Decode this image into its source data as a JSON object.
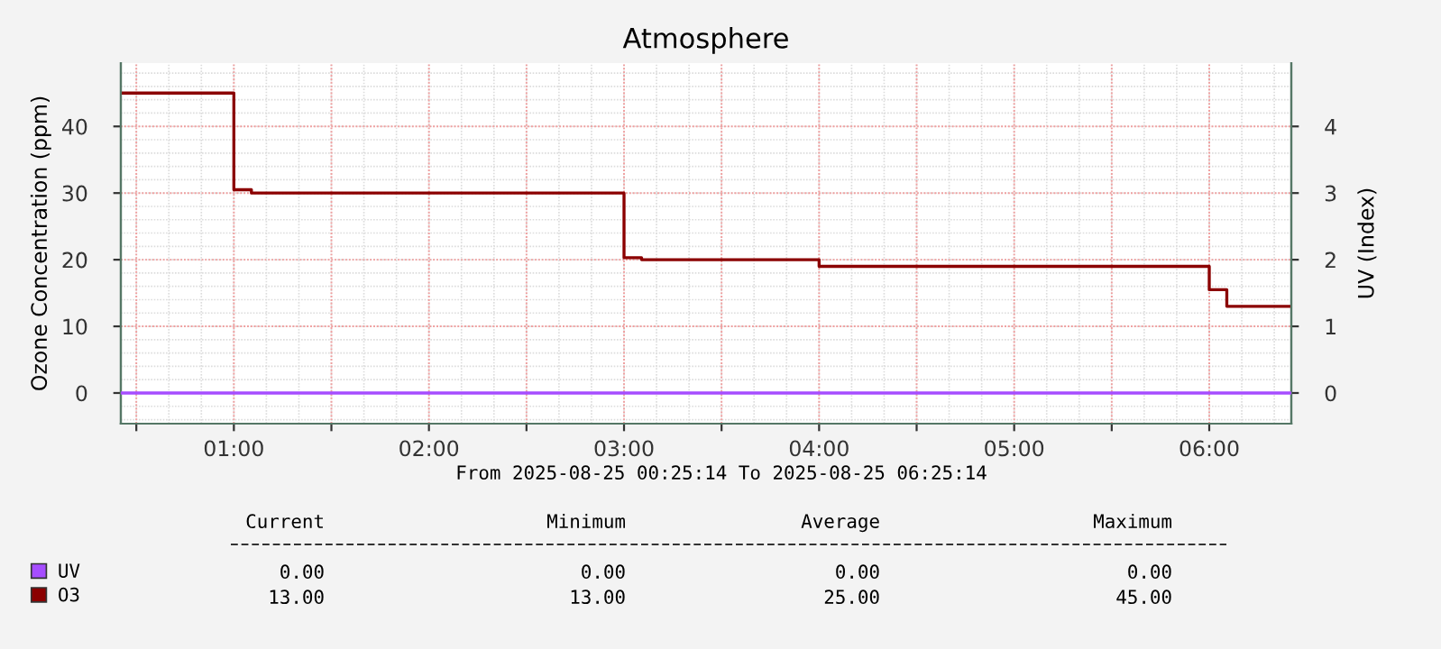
{
  "chart_data": {
    "type": "step",
    "title": "Atmosphere",
    "ylabel": "Ozone Concentration (ppm)",
    "y2label": "UV (Index)",
    "xlim": [
      0.4206,
      6.4206
    ],
    "xticks": [
      {
        "value": 0.5,
        "label": null
      },
      {
        "value": 1,
        "label": "01:00"
      },
      {
        "value": 1.5,
        "label": null
      },
      {
        "value": 2,
        "label": "02:00"
      },
      {
        "value": 2.5,
        "label": null
      },
      {
        "value": 3,
        "label": "03:00"
      },
      {
        "value": 3.5,
        "label": null
      },
      {
        "value": 4,
        "label": "04:00"
      },
      {
        "value": 4.5,
        "label": null
      },
      {
        "value": 5,
        "label": "05:00"
      },
      {
        "value": 5.5,
        "label": null
      },
      {
        "value": 6,
        "label": "06:00"
      }
    ],
    "ylim": [
      -4.6,
      49.5
    ],
    "yticks": [
      0,
      10,
      20,
      30,
      40
    ],
    "y2lim": [
      -0.46,
      4.95
    ],
    "y2ticks": [
      0,
      1,
      2,
      3,
      4
    ],
    "grid": true,
    "legend": "bottom left",
    "series": [
      {
        "name": "UV",
        "color": "#a64dff",
        "axis": "y2",
        "x": [
          0.4206,
          6.4206
        ],
        "values": [
          0,
          0
        ]
      },
      {
        "name": "O3",
        "color": "#8b0000",
        "x": [
          0.4206,
          1.0,
          1.09,
          3.0,
          3.09,
          4.0,
          6.0,
          6.09,
          6.4206
        ],
        "values": [
          45,
          30.5,
          30,
          20.3,
          20,
          19,
          15.5,
          13,
          13
        ]
      }
    ],
    "annotations": [
      "From 2025-08-25 00:25:14 To 2025-08-25 06:25:14",
      "Current",
      "Minimum",
      "Average",
      "Maximum",
      "0.00",
      "0.00",
      "0.00",
      "0.00",
      "13.00",
      "13.00",
      "25.00",
      "45.00"
    ]
  }
}
